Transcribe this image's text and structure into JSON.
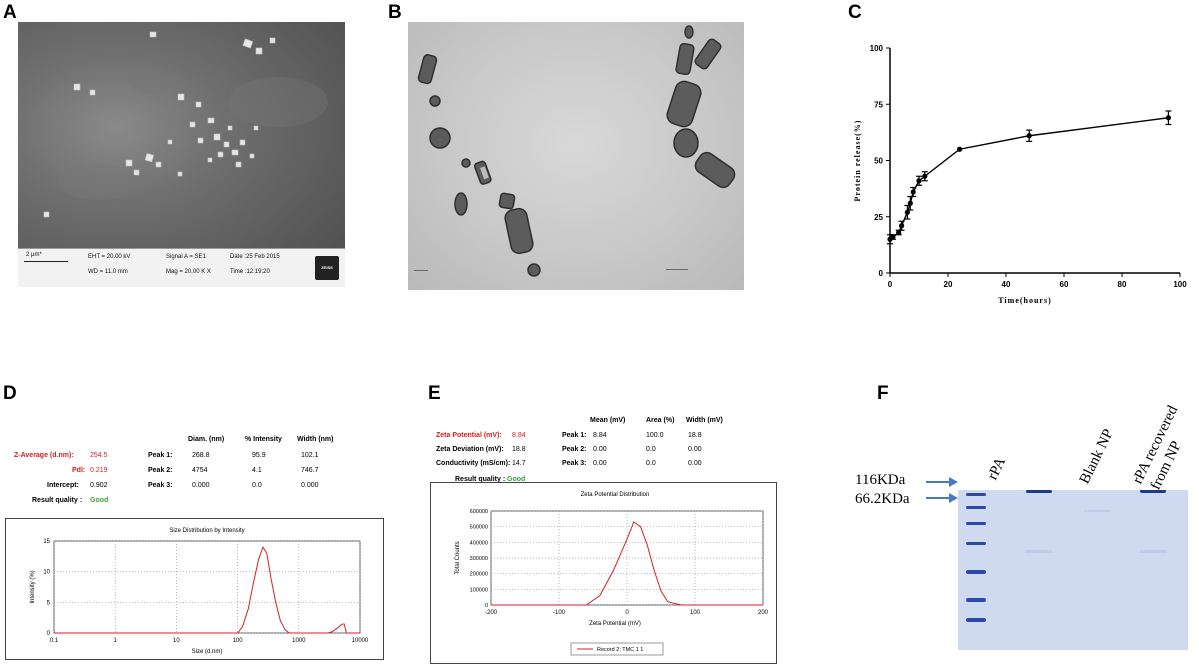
{
  "panels": {
    "A": {
      "letter": "A",
      "scale": "2 µm*",
      "eht": "EHT = 20.00 kV",
      "wd": "WD = 11.0 mm",
      "signal": "Signal A = SE1",
      "mag": "Mag = 20.00 K X",
      "date": "Date :25 Feb 2015",
      "time": "Time :12:19:20",
      "logo": "ZEISS"
    },
    "B": {
      "letter": "B"
    },
    "C": {
      "letter": "C",
      "chart_data": {
        "type": "line",
        "x": [
          0,
          1,
          3,
          4,
          6,
          7,
          8,
          10,
          12,
          24,
          48,
          96
        ],
        "y": [
          15,
          16,
          18,
          21,
          27,
          31,
          36,
          41,
          43,
          55,
          61,
          69
        ],
        "yerr": [
          2,
          1,
          1,
          2,
          3,
          3,
          2,
          2,
          2,
          0,
          2.5,
          3
        ],
        "xlabel": "Time(hours)",
        "ylabel": "Protein release(%)",
        "xlim": [
          0,
          100
        ],
        "ylim": [
          0,
          100
        ],
        "xticks": [
          0,
          20,
          40,
          60,
          80,
          100
        ],
        "yticks": [
          0,
          25,
          50,
          75,
          100
        ]
      }
    },
    "D": {
      "letter": "D",
      "header": {
        "diam": "Diam. (nm)",
        "intensity": "% Intensity",
        "width": "Width (nm)"
      },
      "zavg_label": "Z-Average (d.nm):",
      "zavg_value": "254.5",
      "pdi_label": "PdI:",
      "pdi_value": "0.219",
      "intercept_label": "Intercept:",
      "intercept_value": "0.902",
      "quality_label": "Result quality :",
      "quality_value": "Good",
      "peaks": [
        {
          "label": "Peak 1:",
          "diam": "268.8",
          "intensity": "95.9",
          "width": "102.1"
        },
        {
          "label": "Peak 2:",
          "diam": "4754",
          "intensity": "4.1",
          "width": "746.7"
        },
        {
          "label": "Peak 3:",
          "diam": "0.000",
          "intensity": "0.0",
          "width": "0.000"
        }
      ],
      "chart_data": {
        "type": "line",
        "title": "Size Distribution by Intensity",
        "xlabel": "Size (d.nm)",
        "ylabel": "Intensity (%)",
        "xscale": "log",
        "xticks": [
          0.1,
          1,
          10,
          100,
          1000,
          10000
        ],
        "xtick_labels": [
          "0.1",
          "1",
          "10",
          "100",
          "1000",
          "10000"
        ],
        "yticks": [
          0,
          5,
          10,
          15
        ],
        "ylim": [
          0,
          15
        ],
        "series": [
          {
            "x": [
              0.1,
              100,
              120,
              150,
              180,
              220,
              260,
              300,
              350,
              420,
              500,
              600,
              700,
              1000,
              3000,
              3500,
              4000,
              4500,
              5000,
              5500,
              6000,
              10000
            ],
            "y": [
              0,
              0,
              1,
              4,
              8,
              12,
              14,
              13,
              9,
              5,
              2,
              0.5,
              0,
              0,
              0,
              0.2,
              0.6,
              1.0,
              1.4,
              1.5,
              0,
              0
            ]
          }
        ]
      }
    },
    "E": {
      "letter": "E",
      "header": {
        "mean": "Mean (mV)",
        "area": "Area (%)",
        "width": "Width (mV)"
      },
      "zeta_label": "Zeta Potential (mV):",
      "zeta_value": "8.84",
      "dev_label": "Zeta Deviation (mV):",
      "dev_value": "18.8",
      "cond_label": "Conductivity (mS/cm):",
      "cond_value": "14.7",
      "quality_label": "Result quality :",
      "quality_value": "Good",
      "peaks": [
        {
          "label": "Peak 1:",
          "mean": "8.84",
          "area": "100.0",
          "width": "18.8"
        },
        {
          "label": "Peak 2:",
          "mean": "0.00",
          "area": "0.0",
          "width": "0.00"
        },
        {
          "label": "Peak 3:",
          "mean": "0.00",
          "area": "0.0",
          "width": "0.00"
        }
      ],
      "chart_data": {
        "type": "line",
        "title": "Zeta Potential Distribution",
        "xlabel": "Zeta Potential (mV)",
        "ylabel": "Total Counts",
        "xlim": [
          -200,
          200
        ],
        "ylim": [
          0,
          600000
        ],
        "xticks": [
          -200,
          -100,
          0,
          100,
          200
        ],
        "yticks": [
          0,
          100000,
          200000,
          300000,
          400000,
          500000,
          600000
        ],
        "legend": "Record 2: TMC 1 1",
        "series": [
          {
            "name": "Record 2: TMC 1 1",
            "x": [
              -200,
              -60,
              -40,
              -20,
              0,
              10,
              20,
              30,
              40,
              50,
              60,
              80,
              200
            ],
            "y": [
              0,
              0,
              60000,
              220000,
              420000,
              530000,
              500000,
              380000,
              220000,
              90000,
              20000,
              0,
              0
            ]
          }
        ]
      }
    },
    "F": {
      "letter": "F",
      "markers": [
        "116KDa",
        "66.2KDa"
      ],
      "lanes": [
        "rPA",
        "Blank NP",
        "rPA recovered\nfrom NP"
      ],
      "colors": {
        "arrow": "#4a78c4",
        "gel": "#cfdaf0",
        "ladder": "#2b4aa6",
        "band": "#1f3a8a"
      }
    }
  }
}
